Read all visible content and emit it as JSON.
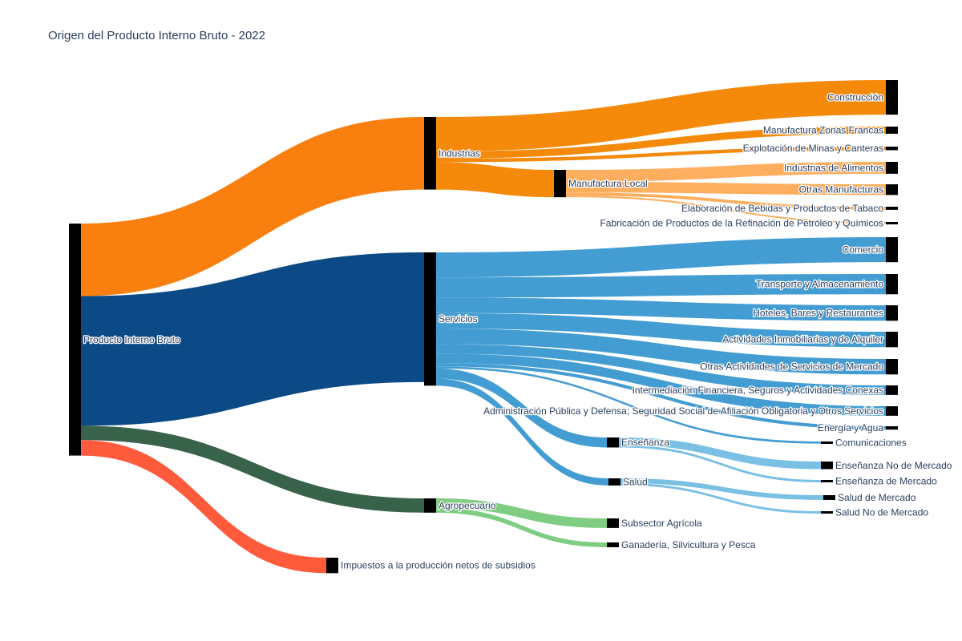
{
  "chart_data": {
    "type": "sankey",
    "title": "Origen del Producto Interno Bruto - 2022",
    "nodes": [
      {
        "id": "pib",
        "label": "Producto Interno Bruto",
        "column": 0,
        "color": "#000000"
      },
      {
        "id": "industrias",
        "label": "Industrias",
        "column": 1,
        "color": "#000000"
      },
      {
        "id": "servicios",
        "label": "Servicios",
        "column": 1,
        "color": "#000000"
      },
      {
        "id": "agropecuario",
        "label": "Agropecuario",
        "column": 1,
        "color": "#000000"
      },
      {
        "id": "impuestos",
        "label": "Impuestos a la producción netos de subsidios",
        "column": 1,
        "color": "#000000"
      },
      {
        "id": "construccion",
        "label": "Construcción",
        "column": 3,
        "color": "#000000"
      },
      {
        "id": "mzf",
        "label": "Manufactura Zonas Francas",
        "column": 3,
        "color": "#000000"
      },
      {
        "id": "minas",
        "label": "Explotación de Minas y Canteras",
        "column": 3,
        "color": "#000000"
      },
      {
        "id": "manuf_local",
        "label": "Manufactura Local",
        "column": 2,
        "color": "#000000"
      },
      {
        "id": "alimentos",
        "label": "Industrias de Alimentos",
        "column": 3,
        "color": "#000000"
      },
      {
        "id": "otras_manuf",
        "label": "Otras Manufacturas",
        "column": 3,
        "color": "#000000"
      },
      {
        "id": "bebidas",
        "label": "Elaboración de Bebidas y Productos de Tabaco",
        "column": 3,
        "color": "#000000"
      },
      {
        "id": "petroleo",
        "label": "Fabricación de Productos de la Refinación de Petróleo y Químicos",
        "column": 3,
        "color": "#000000"
      },
      {
        "id": "comercio",
        "label": "Comercio",
        "column": 3,
        "color": "#000000"
      },
      {
        "id": "transporte",
        "label": "Transporte y Almacenamiento",
        "column": 3,
        "color": "#000000"
      },
      {
        "id": "hoteles",
        "label": "Hoteles, Bares y Restaurantes",
        "column": 3,
        "color": "#000000"
      },
      {
        "id": "inmobiliarias",
        "label": "Actividades Inmobiliarias y de Alquiler",
        "column": 3,
        "color": "#000000"
      },
      {
        "id": "otras_serv",
        "label": "Otras Actividades de Servicios de Mercado",
        "column": 3,
        "color": "#000000"
      },
      {
        "id": "financiera",
        "label": "Intermediación Financiera, Seguros y Actividades Conexas",
        "column": 3,
        "color": "#000000"
      },
      {
        "id": "admin",
        "label": "Administración Pública y Defensa; Seguridad Social de Afiliación Obligatoria y Otros Servicios",
        "column": 3,
        "color": "#000000"
      },
      {
        "id": "energia",
        "label": "Energía y Agua",
        "column": 3,
        "color": "#000000"
      },
      {
        "id": "comunicaciones",
        "label": "Comunicaciones",
        "column": 3,
        "color": "#000000"
      },
      {
        "id": "ensenanza",
        "label": "Enseñanza",
        "column": 2,
        "color": "#000000"
      },
      {
        "id": "ens_no_merc",
        "label": "Enseñanza No de Mercado",
        "column": 3,
        "color": "#000000"
      },
      {
        "id": "ens_merc",
        "label": "Enseñanza de Mercado",
        "column": 3,
        "color": "#000000"
      },
      {
        "id": "salud",
        "label": "Salud",
        "column": 2,
        "color": "#000000"
      },
      {
        "id": "salud_merc",
        "label": "Salud de Mercado",
        "column": 3,
        "color": "#000000"
      },
      {
        "id": "salud_no_merc",
        "label": "Salud No de Mercado",
        "column": 3,
        "color": "#000000"
      },
      {
        "id": "subsector_agricola",
        "label": "Subsector Agrícola",
        "column": 2,
        "color": "#000000"
      },
      {
        "id": "ganaderia",
        "label": "Ganadería, Silvicultura y Pesca",
        "column": 2,
        "color": "#000000"
      }
    ],
    "links": [
      {
        "source": "pib",
        "target": "industrias",
        "value": 30.5,
        "color": "#f9800e"
      },
      {
        "source": "pib",
        "target": "servicios",
        "value": 54.5,
        "color": "#0b4a87"
      },
      {
        "source": "pib",
        "target": "agropecuario",
        "value": 6.0,
        "color": "#39624b"
      },
      {
        "source": "pib",
        "target": "impuestos",
        "value": 6.5,
        "color": "#fe5a3c"
      },
      {
        "source": "industrias",
        "target": "construccion",
        "value": 14.5,
        "color": "#f5890a"
      },
      {
        "source": "industrias",
        "target": "mzf",
        "value": 3.0,
        "color": "#f5890a"
      },
      {
        "source": "industrias",
        "target": "minas",
        "value": 1.5,
        "color": "#f5890a"
      },
      {
        "source": "industrias",
        "target": "manuf_local",
        "value": 11.5,
        "color": "#f5890a"
      },
      {
        "source": "manuf_local",
        "target": "alimentos",
        "value": 5.0,
        "color": "#fdae5e"
      },
      {
        "source": "manuf_local",
        "target": "otras_manuf",
        "value": 4.5,
        "color": "#fdae5e"
      },
      {
        "source": "manuf_local",
        "target": "bebidas",
        "value": 1.3,
        "color": "#fdae5e"
      },
      {
        "source": "manuf_local",
        "target": "petroleo",
        "value": 0.7,
        "color": "#fdae5e"
      },
      {
        "source": "servicios",
        "target": "comercio",
        "value": 10.5,
        "color": "#449dd2"
      },
      {
        "source": "servicios",
        "target": "transporte",
        "value": 8.5,
        "color": "#449dd2"
      },
      {
        "source": "servicios",
        "target": "hoteles",
        "value": 6.5,
        "color": "#449dd2"
      },
      {
        "source": "servicios",
        "target": "inmobiliarias",
        "value": 6.5,
        "color": "#449dd2"
      },
      {
        "source": "servicios",
        "target": "otras_serv",
        "value": 6.5,
        "color": "#449dd2"
      },
      {
        "source": "servicios",
        "target": "financiera",
        "value": 4.0,
        "color": "#449dd2"
      },
      {
        "source": "servicios",
        "target": "admin",
        "value": 4.0,
        "color": "#449dd2"
      },
      {
        "source": "servicios",
        "target": "energia",
        "value": 1.4,
        "color": "#449dd2"
      },
      {
        "source": "servicios",
        "target": "comunicaciones",
        "value": 0.9,
        "color": "#449dd2"
      },
      {
        "source": "servicios",
        "target": "ensenanza",
        "value": 4.2,
        "color": "#449dd2"
      },
      {
        "source": "servicios",
        "target": "salud",
        "value": 3.0,
        "color": "#449dd2"
      },
      {
        "source": "ensenanza",
        "target": "ens_no_merc",
        "value": 3.2,
        "color": "#7abfe4"
      },
      {
        "source": "ensenanza",
        "target": "ens_merc",
        "value": 1.0,
        "color": "#7abfe4"
      },
      {
        "source": "salud",
        "target": "salud_merc",
        "value": 2.0,
        "color": "#7abfe4"
      },
      {
        "source": "salud",
        "target": "salud_no_merc",
        "value": 1.0,
        "color": "#7abfe4"
      },
      {
        "source": "agropecuario",
        "target": "subsector_agricola",
        "value": 4.0,
        "color": "#7ecd82"
      },
      {
        "source": "agropecuario",
        "target": "ganaderia",
        "value": 2.0,
        "color": "#7ecd82"
      }
    ]
  }
}
